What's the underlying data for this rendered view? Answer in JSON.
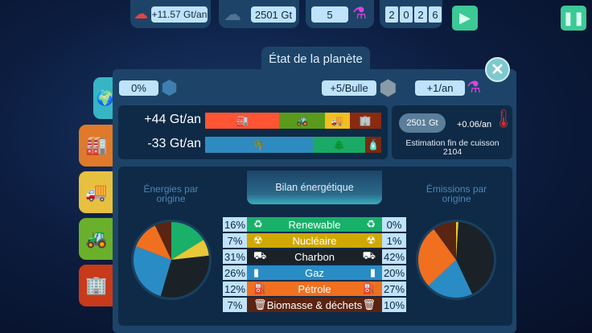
{
  "topbar": {
    "emission_rate": "+11.57 Gt/an",
    "co2_stock": "2501 Gt",
    "flask_count": "5",
    "year_digits": [
      "2",
      "0",
      "2",
      "6"
    ]
  },
  "panel": {
    "title": "État de la planète",
    "bubble_pct": "0%",
    "per_bubble": "+5/Bulle",
    "per_year": "+1/an"
  },
  "emissions": {
    "positive": "+44 Gt/an",
    "negative": "-33 Gt/an",
    "positive_segments": [
      {
        "icon": "factory-icon",
        "color": "#ff5533",
        "share": 42
      },
      {
        "icon": "tractor-icon",
        "color": "#5a9a1a",
        "share": 26
      },
      {
        "icon": "truck-icon",
        "color": "#f0c020",
        "share": 14
      },
      {
        "icon": "building-icon",
        "color": "#8a2a10",
        "share": 18
      }
    ],
    "negative_segments": [
      {
        "icon": "palm-island-icon",
        "color": "#2e8bc0",
        "share": 61
      },
      {
        "icon": "forest-icon",
        "color": "#1aaa66",
        "share": 30
      },
      {
        "icon": "bottle-icon",
        "color": "#7a2a10",
        "share": 9
      }
    ]
  },
  "climate": {
    "stock": "2501 Gt",
    "temp_rate": "+0.06/an",
    "estimate_label": "Estimation fin de cuisson",
    "estimate_year": "2104"
  },
  "energy": {
    "tab_left": "Énergies par origine",
    "tab_center": "Bilan énergétique",
    "tab_right": "Émissions par origine",
    "rows": [
      {
        "label": "Renewable",
        "left": "16%",
        "right": "0%",
        "color": "#19b06a",
        "icon": "recycle-plug-icon",
        "lv": 16,
        "rv": 0
      },
      {
        "label": "Nucléaire",
        "left": "7%",
        "right": "1%",
        "color": "#d0a800",
        "icon": "radiation-icon",
        "lv": 7,
        "rv": 1
      },
      {
        "label": "Charbon",
        "left": "31%",
        "right": "42%",
        "color": "#1a2228",
        "icon": "mine-cart-icon",
        "lv": 31,
        "rv": 42
      },
      {
        "label": "Gaz",
        "left": "26%",
        "right": "20%",
        "color": "#2a8cc4",
        "icon": "gas-bottle-icon",
        "lv": 26,
        "rv": 20
      },
      {
        "label": "Pétrole",
        "left": "12%",
        "right": "27%",
        "color": "#f07020",
        "icon": "fuel-pump-icon",
        "lv": 12,
        "rv": 27
      },
      {
        "label": "Biomasse & déchets",
        "left": "7%",
        "right": "10%",
        "color": "#5a2412",
        "icon": "trash-icon",
        "lv": 7,
        "rv": 10
      }
    ]
  },
  "chart_data": [
    {
      "type": "pie",
      "categories": [
        "Renewable",
        "Nucléaire",
        "Charbon",
        "Gaz",
        "Pétrole",
        "Biomasse & déchets"
      ],
      "values": [
        16,
        7,
        31,
        26,
        12,
        7
      ]
    },
    {
      "type": "pie",
      "categories": [
        "Renewable",
        "Nucléaire",
        "Charbon",
        "Gaz",
        "Pétrole",
        "Biomasse & déchets"
      ],
      "values": [
        0,
        1,
        42,
        20,
        27,
        10
      ]
    }
  ]
}
